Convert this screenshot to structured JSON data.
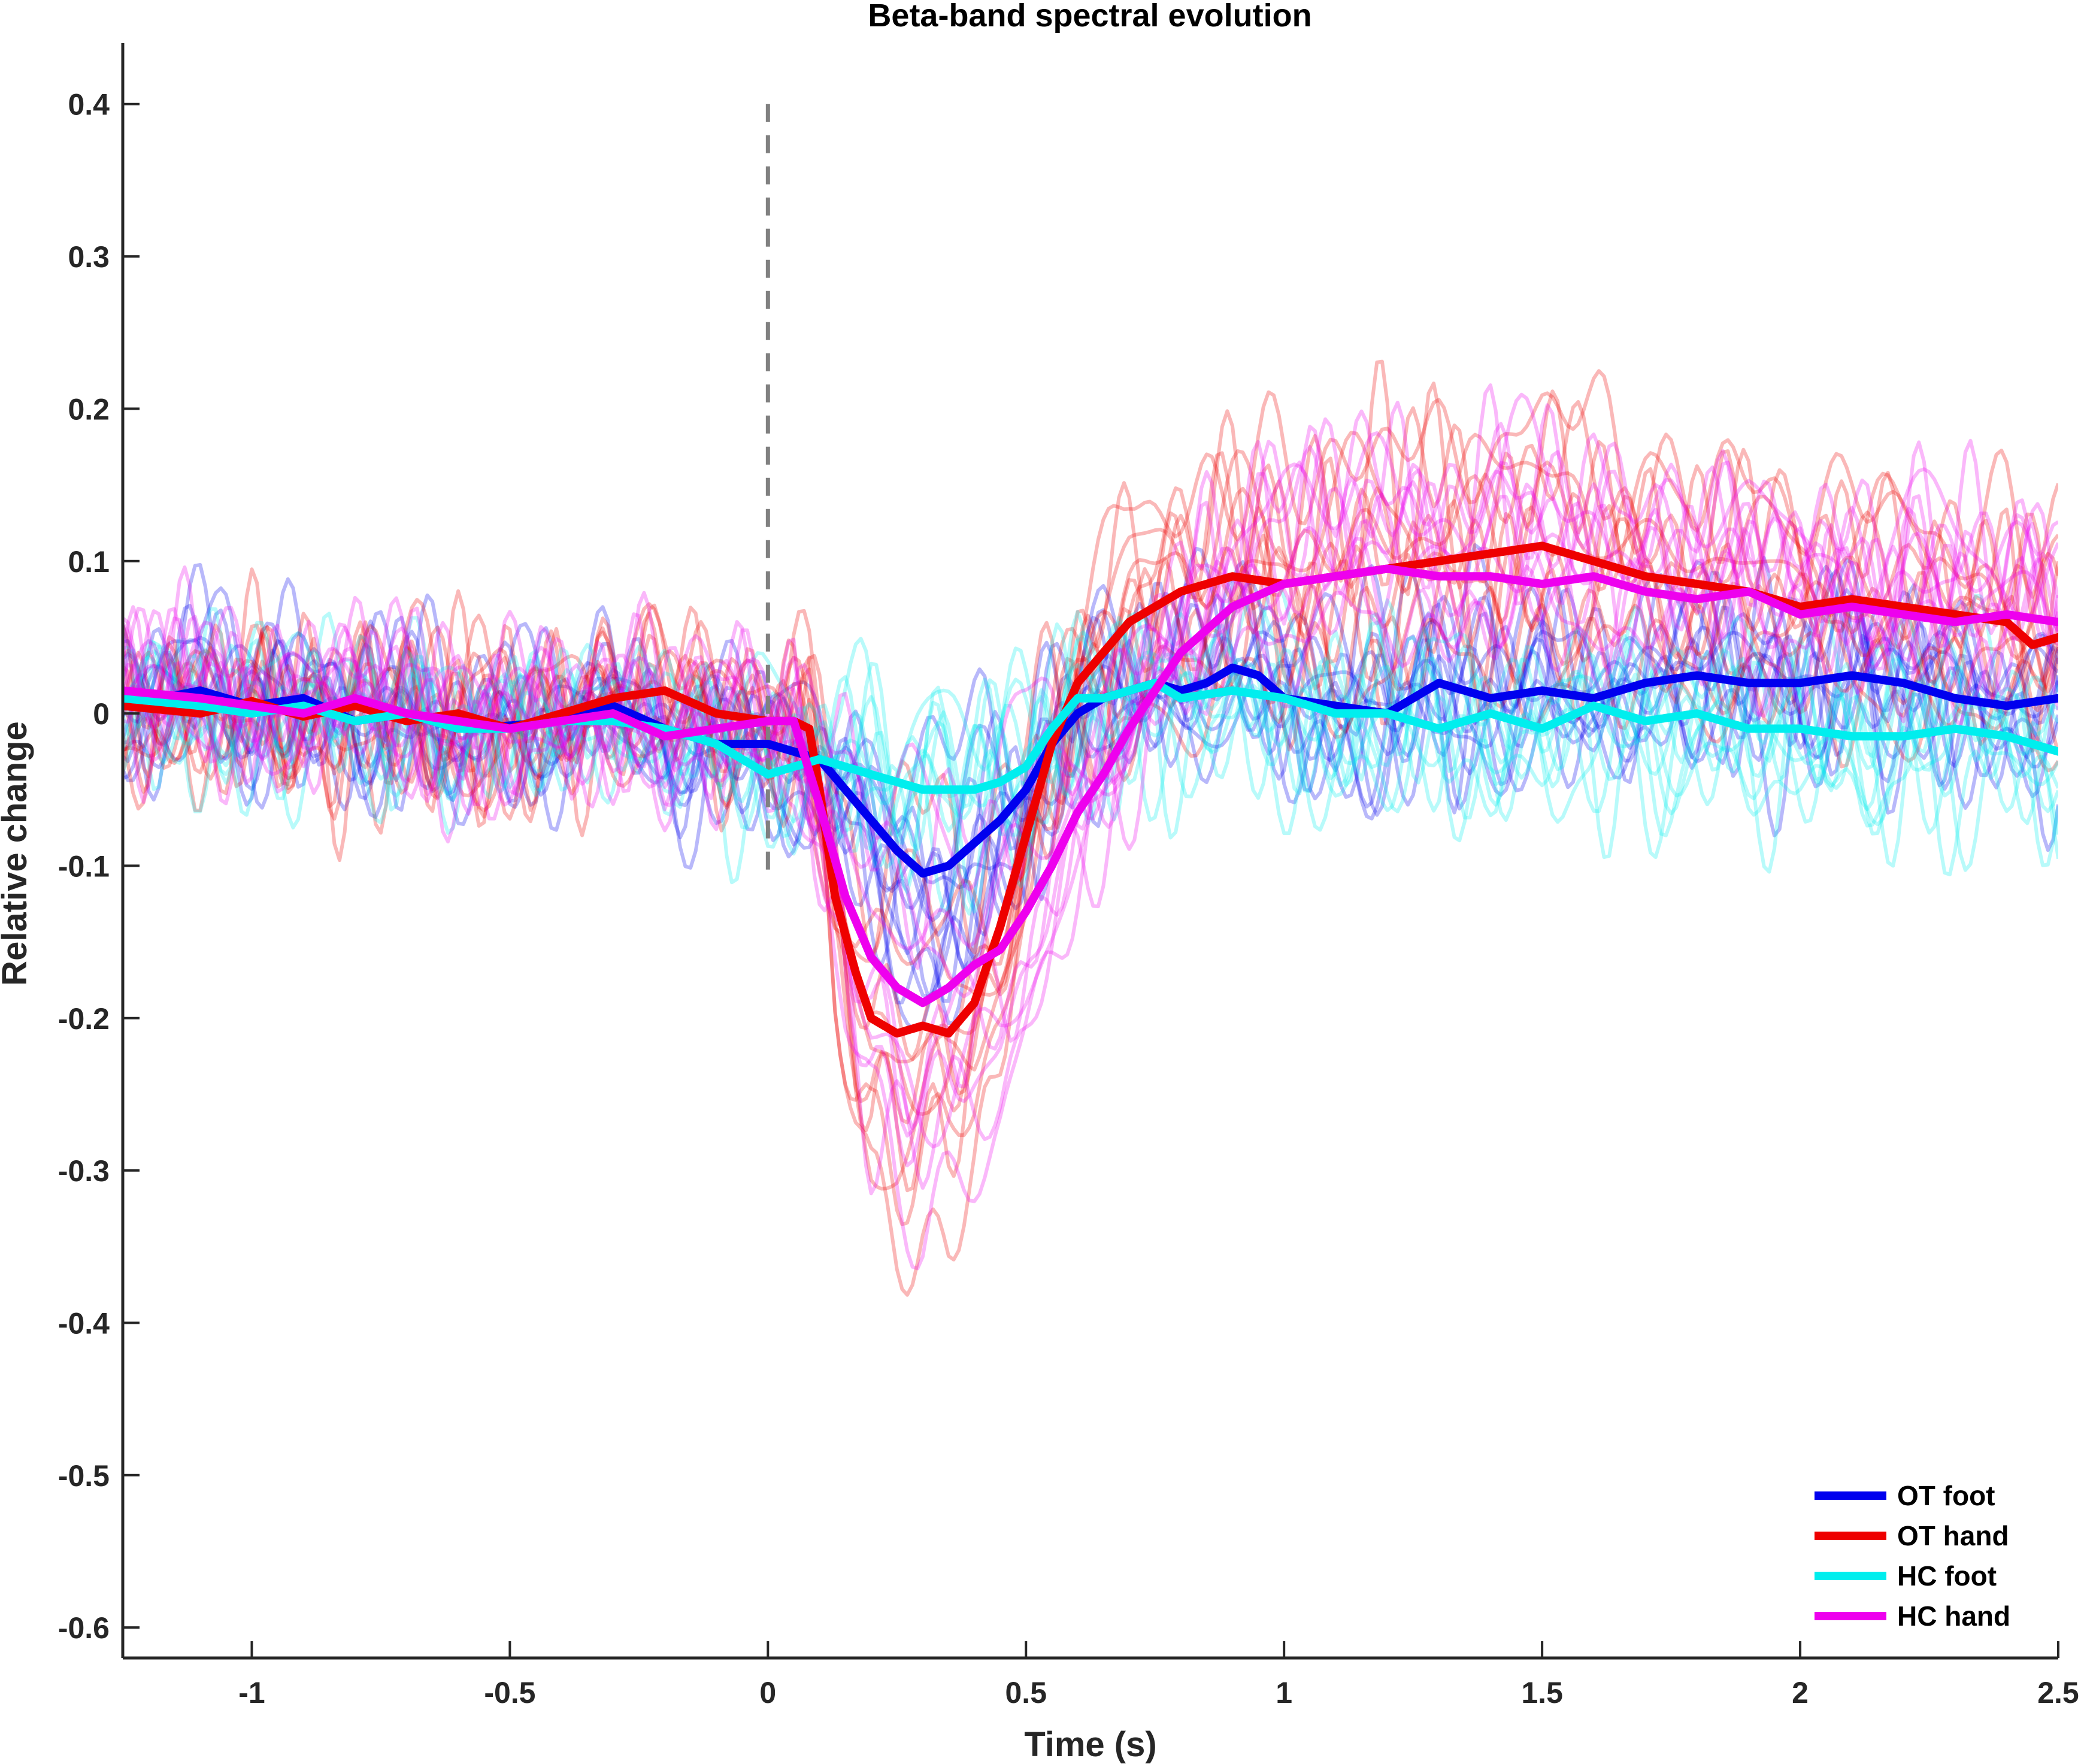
{
  "chart_data": {
    "type": "line",
    "title": "Beta-band spectral evolution",
    "xlabel": "Time (s)",
    "ylabel": "Relative change",
    "xlim": [
      -1.25,
      2.5
    ],
    "ylim": [
      -0.62,
      0.44
    ],
    "xticks": [
      -1,
      -0.5,
      0,
      0.5,
      1,
      1.5,
      2,
      2.5
    ],
    "xtick_labels": [
      "-1",
      "-0.5",
      "0",
      "0.5",
      "1",
      "1.5",
      "2",
      "2.5"
    ],
    "yticks": [
      0.4,
      0.3,
      0.2,
      0.1,
      0,
      -0.1,
      -0.2,
      -0.3,
      -0.4,
      -0.5,
      -0.6
    ],
    "ytick_labels": [
      "0.4",
      "0.3",
      "0.2",
      "0.1",
      "0",
      "-0.1",
      "-0.2",
      "-0.3",
      "-0.4",
      "-0.5",
      "-0.6"
    ],
    "grid": false,
    "legend_position": "bottom-right",
    "stimulus_line": {
      "x": 0,
      "y_range": [
        -0.11,
        0.4
      ],
      "color": "#808080",
      "style": "dashed"
    },
    "series": [
      {
        "name": "OT foot",
        "color": "#0000ee",
        "x": [
          -1.25,
          -1.1,
          -1.0,
          -0.9,
          -0.8,
          -0.7,
          -0.6,
          -0.5,
          -0.4,
          -0.3,
          -0.2,
          -0.1,
          0.0,
          0.05,
          0.1,
          0.15,
          0.2,
          0.25,
          0.3,
          0.35,
          0.4,
          0.45,
          0.5,
          0.55,
          0.6,
          0.65,
          0.7,
          0.75,
          0.8,
          0.85,
          0.9,
          0.95,
          1.0,
          1.1,
          1.2,
          1.3,
          1.4,
          1.5,
          1.6,
          1.7,
          1.8,
          1.9,
          2.0,
          2.1,
          2.2,
          2.3,
          2.4,
          2.5
        ],
        "y": [
          0.005,
          0.015,
          0.005,
          0.01,
          -0.005,
          0.0,
          -0.01,
          -0.008,
          -0.005,
          0.005,
          -0.01,
          -0.02,
          -0.02,
          -0.025,
          -0.03,
          -0.05,
          -0.07,
          -0.09,
          -0.105,
          -0.1,
          -0.085,
          -0.07,
          -0.05,
          -0.02,
          0.0,
          0.01,
          0.015,
          0.02,
          0.015,
          0.02,
          0.03,
          0.025,
          0.01,
          0.005,
          0.0,
          0.02,
          0.01,
          0.015,
          0.01,
          0.02,
          0.025,
          0.02,
          0.02,
          0.025,
          0.02,
          0.01,
          0.005,
          0.01
        ]
      },
      {
        "name": "OT hand",
        "color": "#ee0000",
        "x": [
          -1.25,
          -1.1,
          -1.0,
          -0.9,
          -0.8,
          -0.7,
          -0.6,
          -0.5,
          -0.4,
          -0.3,
          -0.2,
          -0.1,
          0.0,
          0.05,
          0.08,
          0.1,
          0.13,
          0.17,
          0.2,
          0.25,
          0.3,
          0.35,
          0.4,
          0.45,
          0.5,
          0.55,
          0.6,
          0.7,
          0.8,
          0.9,
          1.0,
          1.1,
          1.2,
          1.3,
          1.4,
          1.5,
          1.6,
          1.7,
          1.8,
          1.9,
          2.0,
          2.1,
          2.2,
          2.3,
          2.4,
          2.45,
          2.5
        ],
        "y": [
          0.005,
          0.0,
          0.008,
          -0.002,
          0.005,
          -0.005,
          0.0,
          -0.01,
          0.0,
          0.01,
          0.015,
          0.0,
          -0.005,
          -0.005,
          -0.01,
          -0.05,
          -0.12,
          -0.17,
          -0.2,
          -0.21,
          -0.205,
          -0.21,
          -0.19,
          -0.14,
          -0.08,
          -0.02,
          0.02,
          0.06,
          0.08,
          0.09,
          0.085,
          0.09,
          0.095,
          0.1,
          0.105,
          0.11,
          0.1,
          0.09,
          0.085,
          0.08,
          0.07,
          0.075,
          0.07,
          0.065,
          0.06,
          0.045,
          0.05
        ]
      },
      {
        "name": "HC foot",
        "color": "#00eeee",
        "x": [
          -1.25,
          -1.1,
          -1.0,
          -0.9,
          -0.8,
          -0.7,
          -0.6,
          -0.5,
          -0.4,
          -0.3,
          -0.2,
          -0.1,
          -0.05,
          0.0,
          0.05,
          0.1,
          0.2,
          0.3,
          0.4,
          0.45,
          0.5,
          0.55,
          0.6,
          0.65,
          0.7,
          0.75,
          0.8,
          0.9,
          1.0,
          1.1,
          1.2,
          1.3,
          1.4,
          1.5,
          1.6,
          1.7,
          1.8,
          1.9,
          2.0,
          2.1,
          2.2,
          2.3,
          2.4,
          2.5
        ],
        "y": [
          0.01,
          0.005,
          0.0,
          0.005,
          -0.005,
          0.0,
          -0.01,
          -0.01,
          -0.005,
          -0.005,
          -0.01,
          -0.02,
          -0.03,
          -0.04,
          -0.035,
          -0.03,
          -0.04,
          -0.05,
          -0.05,
          -0.045,
          -0.035,
          -0.01,
          0.01,
          0.01,
          0.015,
          0.02,
          0.01,
          0.015,
          0.01,
          0.0,
          0.0,
          -0.01,
          0.0,
          -0.01,
          0.005,
          -0.005,
          0.0,
          -0.01,
          -0.01,
          -0.015,
          -0.015,
          -0.01,
          -0.015,
          -0.025
        ]
      },
      {
        "name": "HC hand",
        "color": "#ee00ee",
        "x": [
          -1.25,
          -1.1,
          -1.0,
          -0.9,
          -0.8,
          -0.7,
          -0.6,
          -0.5,
          -0.4,
          -0.3,
          -0.2,
          -0.1,
          0.0,
          0.05,
          0.1,
          0.15,
          0.2,
          0.25,
          0.3,
          0.35,
          0.4,
          0.45,
          0.5,
          0.55,
          0.6,
          0.65,
          0.7,
          0.8,
          0.9,
          1.0,
          1.1,
          1.2,
          1.3,
          1.4,
          1.5,
          1.6,
          1.7,
          1.8,
          1.9,
          2.0,
          2.1,
          2.2,
          2.3,
          2.4,
          2.5
        ],
        "y": [
          0.015,
          0.01,
          0.005,
          0.0,
          0.01,
          0.0,
          -0.005,
          -0.01,
          -0.005,
          0.0,
          -0.015,
          -0.01,
          -0.005,
          -0.005,
          -0.06,
          -0.12,
          -0.16,
          -0.18,
          -0.19,
          -0.18,
          -0.165,
          -0.155,
          -0.13,
          -0.1,
          -0.065,
          -0.04,
          -0.01,
          0.04,
          0.07,
          0.085,
          0.09,
          0.095,
          0.09,
          0.09,
          0.085,
          0.09,
          0.08,
          0.075,
          0.08,
          0.065,
          0.07,
          0.065,
          0.06,
          0.065,
          0.06
        ]
      }
    ]
  }
}
